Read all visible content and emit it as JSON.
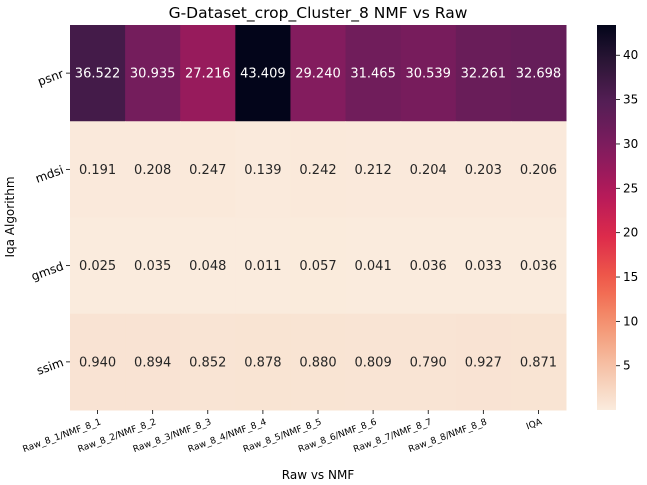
{
  "chart_data": {
    "type": "heatmap",
    "title": "G-Dataset_crop_Cluster_8 NMF vs Raw",
    "xlabel": "Raw vs NMF",
    "ylabel": "Iqa Algorithm",
    "x_categories": [
      "Raw_8_1/NMF_8_1",
      "Raw_8_2/NMF_8_2",
      "Raw_8_3/NMF_8_3",
      "Raw_8_4/NMF_8_4",
      "Raw_8_5/NMF_8_5",
      "Raw_8_6/NMF_8_6",
      "Raw_8_7/NMF_8_7",
      "Raw_8_8/NMF_8_8",
      "IQA"
    ],
    "y_categories": [
      "psnr",
      "mdsi",
      "gmsd",
      "ssim"
    ],
    "values": [
      [
        36.522,
        30.935,
        27.216,
        43.409,
        29.24,
        31.465,
        30.539,
        32.261,
        32.698
      ],
      [
        0.191,
        0.208,
        0.247,
        0.139,
        0.242,
        0.212,
        0.204,
        0.203,
        0.206
      ],
      [
        0.025,
        0.035,
        0.048,
        0.011,
        0.057,
        0.041,
        0.036,
        0.033,
        0.036
      ],
      [
        0.94,
        0.894,
        0.852,
        0.878,
        0.88,
        0.809,
        0.79,
        0.927,
        0.871
      ]
    ],
    "value_labels": [
      [
        "36.522",
        "30.935",
        "27.216",
        "43.409",
        "29.240",
        "31.465",
        "30.539",
        "32.261",
        "32.698"
      ],
      [
        "0.191",
        "0.208",
        "0.247",
        "0.139",
        "0.242",
        "0.212",
        "0.204",
        "0.203",
        "0.206"
      ],
      [
        "0.025",
        "0.035",
        "0.048",
        "0.011",
        "0.057",
        "0.041",
        "0.036",
        "0.033",
        "0.036"
      ],
      [
        "0.940",
        "0.894",
        "0.852",
        "0.878",
        "0.880",
        "0.809",
        "0.790",
        "0.927",
        "0.871"
      ]
    ],
    "colormap": "rocket_r",
    "colorbar": {
      "range": [
        0.011,
        43.409
      ],
      "ticks": [
        5,
        10,
        15,
        20,
        25,
        30,
        35,
        40
      ],
      "tick_labels": [
        "5",
        "10",
        "15",
        "20",
        "25",
        "30",
        "35",
        "40"
      ]
    }
  }
}
